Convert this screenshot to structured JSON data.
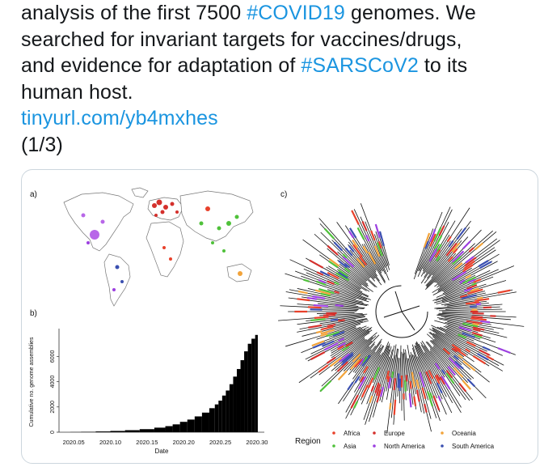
{
  "tweet": {
    "segments": [
      {
        "t": "analysis of the first 7500 ",
        "k": "text"
      },
      {
        "t": "#COVID19",
        "k": "tag"
      },
      {
        "t": " genomes. We",
        "k": "text"
      }
    ],
    "line2": "searched for invariant targets for vaccines/drugs,",
    "line3_a": "and evidence for adaptation of ",
    "line3_tag": "#SARSCoV2",
    "line3_b": " to its",
    "line4": "human host.",
    "link": "tinyurl.com/yb4mxhes",
    "counter": "(1/3)"
  },
  "figure": {
    "panel_a_label": "a)",
    "panel_b_label": "b)",
    "panel_c_label": "c)",
    "legend": {
      "title": "Region",
      "items": [
        {
          "label": "Africa",
          "color": "#e8412b"
        },
        {
          "label": "Asia",
          "color": "#4fc13a"
        },
        {
          "label": "Europe",
          "color": "#d4302c"
        },
        {
          "label": "North America",
          "color": "#9c3fe0"
        },
        {
          "label": "Oceania",
          "color": "#f2a33a"
        },
        {
          "label": "South America",
          "color": "#3a4fb0"
        }
      ]
    }
  },
  "chart_data": {
    "type": "bar",
    "title": "",
    "xlabel": "Date",
    "ylabel": "Cumulative no. genome assemblies",
    "x_ticks": [
      "2020.05",
      "2020.10",
      "2020.15",
      "2020.20",
      "2020.25",
      "2020.30"
    ],
    "y_ticks": [
      "0",
      "2000",
      "4000",
      "6000"
    ],
    "ylim": [
      0,
      8200
    ],
    "x": [
      2020.05,
      2020.07,
      2020.09,
      2020.11,
      2020.13,
      2020.15,
      2020.17,
      2020.18,
      2020.19,
      2020.2,
      2020.21,
      2020.22,
      2020.23,
      2020.24,
      2020.245,
      2020.25,
      2020.255,
      2020.26,
      2020.265,
      2020.27,
      2020.275,
      2020.28,
      2020.285,
      2020.29,
      2020.295,
      2020.3
    ],
    "values": [
      10,
      30,
      60,
      100,
      160,
      240,
      360,
      480,
      620,
      820,
      1000,
      1250,
      1550,
      1900,
      2200,
      2500,
      2900,
      3300,
      3800,
      4400,
      5000,
      5700,
      6400,
      7000,
      7400,
      7700
    ]
  }
}
